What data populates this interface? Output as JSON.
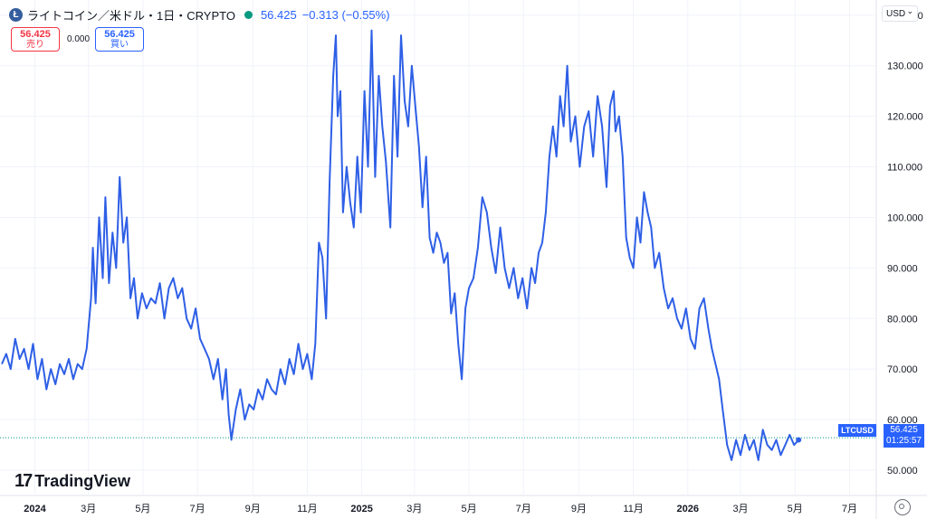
{
  "header": {
    "icon_letter": "Ł",
    "title": "ライトコイン／米ドル・1日・CRYPTO",
    "last": "56.425",
    "change": "−0.313 (−0.55%)"
  },
  "trade": {
    "sell_price": "56.425",
    "sell_label": "売り",
    "spread": "0.000",
    "buy_price": "56.425",
    "buy_label": "買い"
  },
  "currency": "USD",
  "logo_text": "TradingView",
  "current_price": {
    "symbol": "LTCUSD",
    "price": "56.425",
    "countdown": "01:25:57"
  },
  "colors": {
    "line": "#2e5fe6",
    "accent": "#2962ff",
    "sell": "#f23645",
    "live": "#089981",
    "grid": "#f0f3fa"
  },
  "chart_data": {
    "type": "line",
    "title": "ライトコイン／米ドル・1日・CRYPTO",
    "xlabel": "",
    "ylabel": "",
    "ylim": [
      45,
      143
    ],
    "grid": true,
    "y_ticks": [
      "50.000",
      "60.000",
      "70.000",
      "80.000",
      "90.000",
      "100.000",
      "110.000",
      "120.000",
      "130.000",
      "140.000"
    ],
    "x_ticks": [
      {
        "date": "2024-01-01",
        "label": "2024",
        "bold": true
      },
      {
        "date": "2024-03-01",
        "label": "3月"
      },
      {
        "date": "2024-05-01",
        "label": "5月"
      },
      {
        "date": "2024-07-01",
        "label": "7月"
      },
      {
        "date": "2024-09-01",
        "label": "9月"
      },
      {
        "date": "2024-11-01",
        "label": "11月"
      },
      {
        "date": "2025-01-01",
        "label": "2025",
        "bold": true
      },
      {
        "date": "2025-03-01",
        "label": "3月"
      },
      {
        "date": "2025-05-01",
        "label": "5月"
      },
      {
        "date": "2025-07-01",
        "label": "7月"
      },
      {
        "date": "2025-09-01",
        "label": "9月"
      },
      {
        "date": "2025-11-01",
        "label": "11月"
      },
      {
        "date": "2026-01-01",
        "label": "2026",
        "bold": true
      },
      {
        "date": "2026-03-01",
        "label": "3月"
      },
      {
        "date": "2026-05-01",
        "label": "5月"
      },
      {
        "date": "2026-07-01",
        "label": "7月"
      }
    ],
    "series": [
      {
        "x": [
          "2023-11-25",
          "2023-11-30",
          "2023-12-05",
          "2023-12-10",
          "2023-12-15",
          "2023-12-20",
          "2023-12-25",
          "2023-12-30",
          "2024-01-04",
          "2024-01-09",
          "2024-01-14",
          "2024-01-19",
          "2024-01-24",
          "2024-01-29",
          "2024-02-03",
          "2024-02-08",
          "2024-02-13",
          "2024-02-18",
          "2024-02-23",
          "2024-02-28",
          "2024-03-04",
          "2024-03-06",
          "2024-03-09",
          "2024-03-13",
          "2024-03-17",
          "2024-03-20",
          "2024-03-24",
          "2024-03-28",
          "2024-04-01",
          "2024-04-05",
          "2024-04-09",
          "2024-04-13",
          "2024-04-17",
          "2024-04-21",
          "2024-04-25",
          "2024-04-30",
          "2024-05-05",
          "2024-05-10",
          "2024-05-15",
          "2024-05-20",
          "2024-05-25",
          "2024-05-30",
          "2024-06-04",
          "2024-06-09",
          "2024-06-14",
          "2024-06-19",
          "2024-06-24",
          "2024-06-29",
          "2024-07-04",
          "2024-07-09",
          "2024-07-14",
          "2024-07-19",
          "2024-07-24",
          "2024-07-29",
          "2024-08-02",
          "2024-08-05",
          "2024-08-08",
          "2024-08-13",
          "2024-08-18",
          "2024-08-23",
          "2024-08-28",
          "2024-09-02",
          "2024-09-07",
          "2024-09-12",
          "2024-09-17",
          "2024-09-22",
          "2024-09-27",
          "2024-10-02",
          "2024-10-07",
          "2024-10-12",
          "2024-10-17",
          "2024-10-22",
          "2024-10-27",
          "2024-11-01",
          "2024-11-06",
          "2024-11-10",
          "2024-11-14",
          "2024-11-18",
          "2024-11-22",
          "2024-11-26",
          "2024-11-30",
          "2024-12-03",
          "2024-12-05",
          "2024-12-08",
          "2024-12-11",
          "2024-12-15",
          "2024-12-19",
          "2024-12-23",
          "2024-12-27",
          "2024-12-31",
          "2025-01-04",
          "2025-01-08",
          "2025-01-12",
          "2025-01-16",
          "2025-01-20",
          "2025-01-24",
          "2025-01-28",
          "2025-02-02",
          "2025-02-06",
          "2025-02-10",
          "2025-02-14",
          "2025-02-18",
          "2025-02-22",
          "2025-02-26",
          "2025-03-02",
          "2025-03-06",
          "2025-03-10",
          "2025-03-14",
          "2025-03-18",
          "2025-03-22",
          "2025-03-26",
          "2025-03-30",
          "2025-04-03",
          "2025-04-07",
          "2025-04-11",
          "2025-04-15",
          "2025-04-19",
          "2025-04-23",
          "2025-04-27",
          "2025-05-01",
          "2025-05-06",
          "2025-05-11",
          "2025-05-16",
          "2025-05-21",
          "2025-05-26",
          "2025-05-31",
          "2025-06-05",
          "2025-06-10",
          "2025-06-15",
          "2025-06-20",
          "2025-06-25",
          "2025-06-30",
          "2025-07-05",
          "2025-07-10",
          "2025-07-14",
          "2025-07-18",
          "2025-07-22",
          "2025-07-26",
          "2025-07-30",
          "2025-08-03",
          "2025-08-07",
          "2025-08-11",
          "2025-08-15",
          "2025-08-19",
          "2025-08-23",
          "2025-08-28",
          "2025-09-02",
          "2025-09-07",
          "2025-09-12",
          "2025-09-17",
          "2025-09-22",
          "2025-09-27",
          "2025-10-02",
          "2025-10-06",
          "2025-10-10",
          "2025-10-12",
          "2025-10-16",
          "2025-10-20",
          "2025-10-24",
          "2025-10-28",
          "2025-11-01",
          "2025-11-05",
          "2025-11-09",
          "2025-11-13",
          "2025-11-17",
          "2025-11-21",
          "2025-11-25",
          "2025-11-30",
          "2025-12-05",
          "2025-12-10",
          "2025-12-15",
          "2025-12-20",
          "2025-12-25",
          "2025-12-30",
          "2026-01-04",
          "2026-01-09",
          "2026-01-14",
          "2026-01-19",
          "2026-01-24",
          "2026-01-28",
          "2026-02-01",
          "2026-02-05",
          "2026-02-09",
          "2026-02-14",
          "2026-02-19",
          "2026-02-24",
          "2026-03-01",
          "2026-03-06",
          "2026-03-11",
          "2026-03-16",
          "2026-03-21",
          "2026-03-26",
          "2026-03-31",
          "2026-04-05",
          "2026-04-10",
          "2026-04-15",
          "2026-04-20",
          "2026-04-25",
          "2026-04-30",
          "2026-05-05"
        ],
        "values": [
          71,
          73,
          70,
          76,
          72,
          74,
          70,
          75,
          68,
          72,
          66,
          70,
          67,
          71,
          69,
          72,
          68,
          71,
          70,
          74,
          84,
          94,
          83,
          100,
          88,
          104,
          87,
          97,
          90,
          108,
          95,
          100,
          84,
          88,
          80,
          85,
          82,
          84,
          83,
          87,
          80,
          86,
          88,
          84,
          86,
          80,
          78,
          82,
          76,
          74,
          72,
          68,
          72,
          64,
          70,
          61,
          56,
          62,
          66,
          60,
          63,
          62,
          66,
          64,
          68,
          66,
          65,
          70,
          67,
          72,
          69,
          75,
          70,
          73,
          68,
          75,
          95,
          92,
          80,
          107,
          128,
          136,
          120,
          125,
          101,
          110,
          103,
          98,
          112,
          101,
          125,
          110,
          137,
          108,
          128,
          118,
          111,
          98,
          128,
          112,
          136,
          123,
          118,
          130,
          122,
          114,
          102,
          112,
          96,
          93,
          97,
          95,
          91,
          93,
          81,
          85,
          75,
          68,
          82,
          86,
          88,
          94,
          104,
          101,
          94,
          89,
          98,
          90,
          86,
          90,
          84,
          88,
          82,
          90,
          87,
          93,
          95,
          101,
          112,
          118,
          112,
          124,
          118,
          130,
          115,
          120,
          110,
          118,
          121,
          112,
          124,
          118,
          106,
          122,
          125,
          117,
          120,
          112,
          96,
          92,
          90,
          100,
          95,
          105,
          101,
          98,
          90,
          93,
          86,
          82,
          84,
          80,
          78,
          82,
          76,
          74,
          82,
          84,
          78,
          74,
          71,
          68,
          62,
          55,
          52,
          56,
          53,
          57,
          54,
          56,
          52,
          58,
          55,
          54,
          56,
          53,
          55,
          57,
          55,
          56
        ]
      }
    ],
    "last_value": 56.425
  }
}
